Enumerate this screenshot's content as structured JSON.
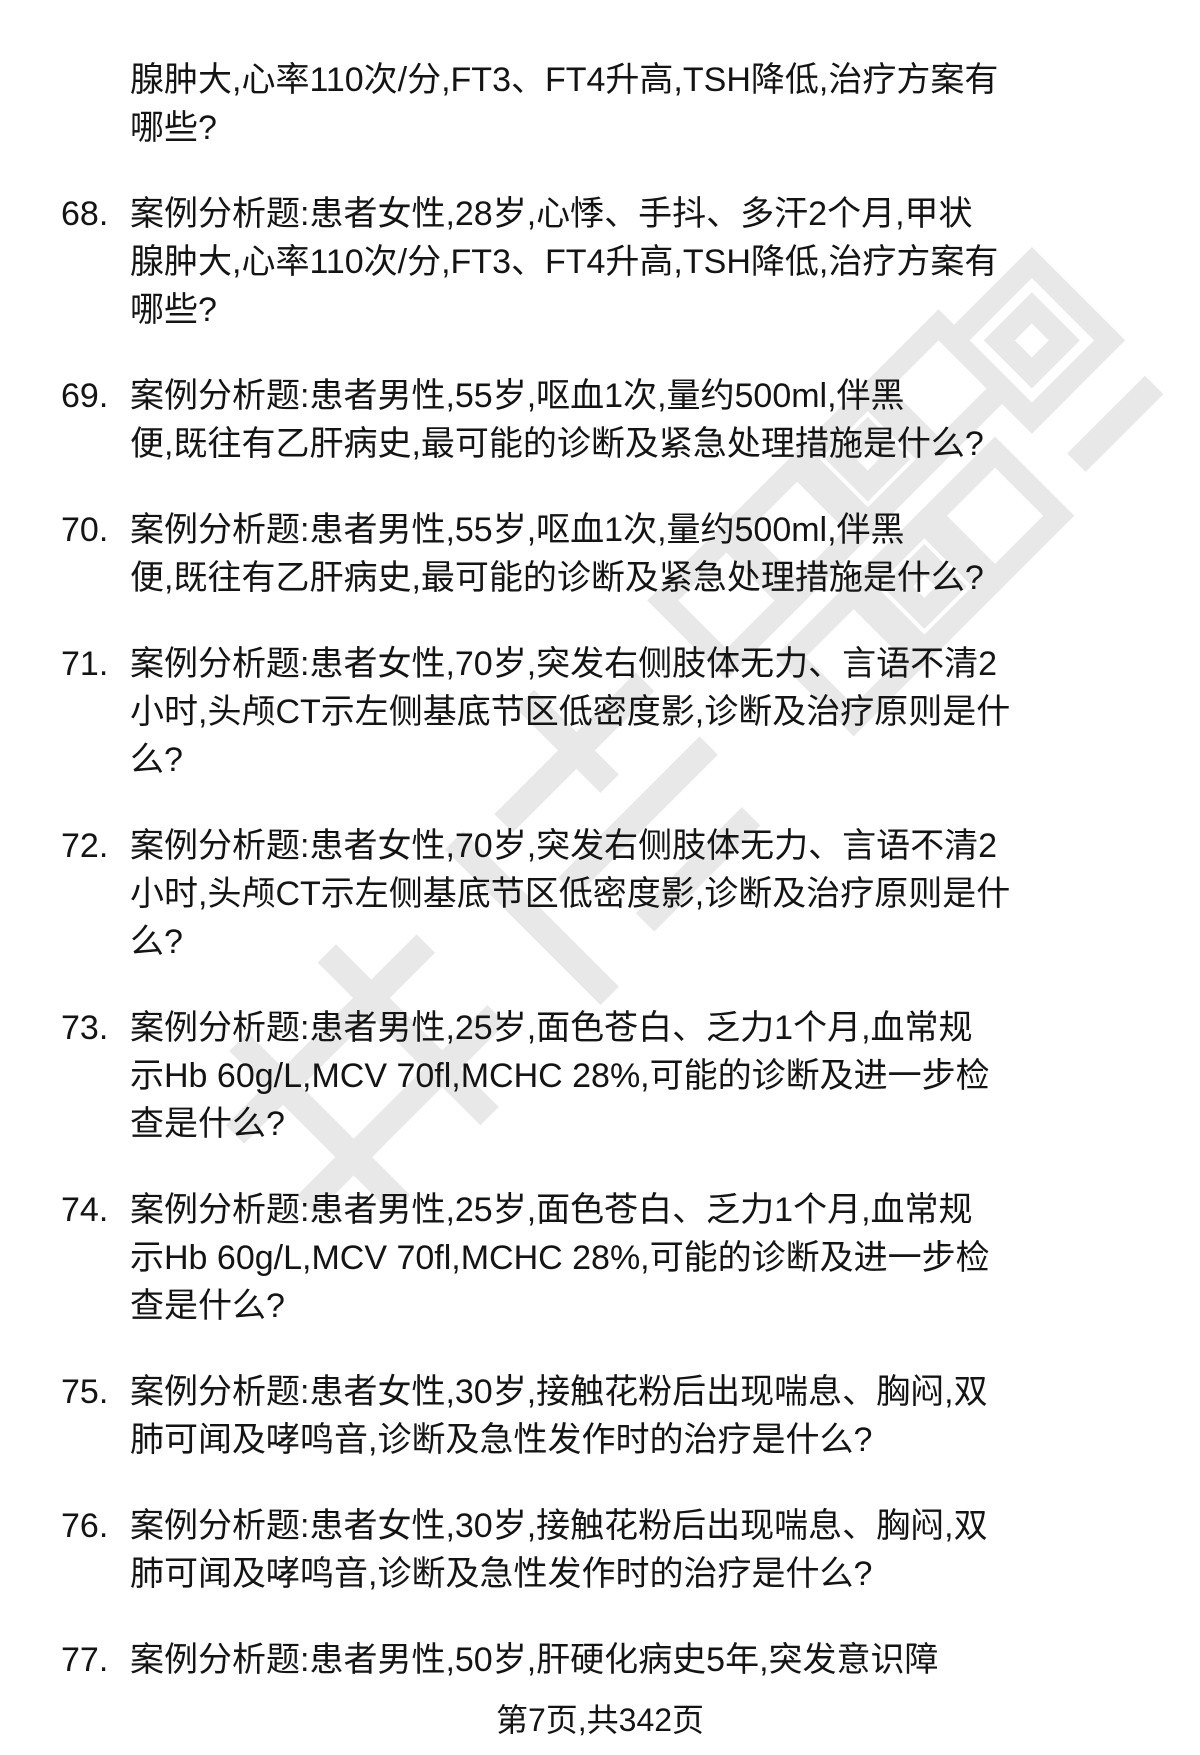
{
  "page": {
    "background": "#ffffff",
    "text_color": "#141414",
    "watermark_color": "#e8e8e8",
    "footer": "第7页,共342页"
  },
  "document": {
    "continuation_lines": [
      "腺肿大,心率110次/分,FT3、FT4升高,TSH降低,治疗方案有",
      "哪些?"
    ],
    "items": [
      {
        "number": "68.",
        "lines": [
          "案例分析题:患者女性,28岁,心悸、手抖、多汗2个月,甲状",
          "腺肿大,心率110次/分,FT3、FT4升高,TSH降低,治疗方案有",
          "哪些?"
        ]
      },
      {
        "number": "69.",
        "lines": [
          "案例分析题:患者男性,55岁,呕血1次,量约500ml,伴黑",
          "便,既往有乙肝病史,最可能的诊断及紧急处理措施是什么?"
        ]
      },
      {
        "number": "70.",
        "lines": [
          "案例分析题:患者男性,55岁,呕血1次,量约500ml,伴黑",
          "便,既往有乙肝病史,最可能的诊断及紧急处理措施是什么?"
        ]
      },
      {
        "number": "71.",
        "lines": [
          "案例分析题:患者女性,70岁,突发右侧肢体无力、言语不清2",
          "小时,头颅CT示左侧基底节区低密度影,诊断及治疗原则是什",
          "么?"
        ]
      },
      {
        "number": "72.",
        "lines": [
          "案例分析题:患者女性,70岁,突发右侧肢体无力、言语不清2",
          "小时,头颅CT示左侧基底节区低密度影,诊断及治疗原则是什",
          "么?"
        ]
      },
      {
        "number": "73.",
        "lines": [
          "案例分析题:患者男性,25岁,面色苍白、乏力1个月,血常规",
          "示Hb 60g/L,MCV 70fl,MCHC 28%,可能的诊断及进一步检",
          "查是什么?"
        ]
      },
      {
        "number": "74.",
        "lines": [
          "案例分析题:患者男性,25岁,面色苍白、乏力1个月,血常规",
          "示Hb 60g/L,MCV 70fl,MCHC 28%,可能的诊断及进一步检",
          "查是什么?"
        ]
      },
      {
        "number": "75.",
        "lines": [
          "案例分析题:患者女性,30岁,接触花粉后出现喘息、胸闷,双",
          "肺可闻及哮鸣音,诊断及急性发作时的治疗是什么?"
        ]
      },
      {
        "number": "76.",
        "lines": [
          "案例分析题:患者女性,30岁,接触花粉后出现喘息、胸闷,双",
          "肺可闻及哮鸣音,诊断及急性发作时的治疗是什么?"
        ]
      },
      {
        "number": "77.",
        "lines": [
          "案例分析题:患者男性,50岁,肝硬化病史5年,突发意识障"
        ]
      }
    ]
  }
}
